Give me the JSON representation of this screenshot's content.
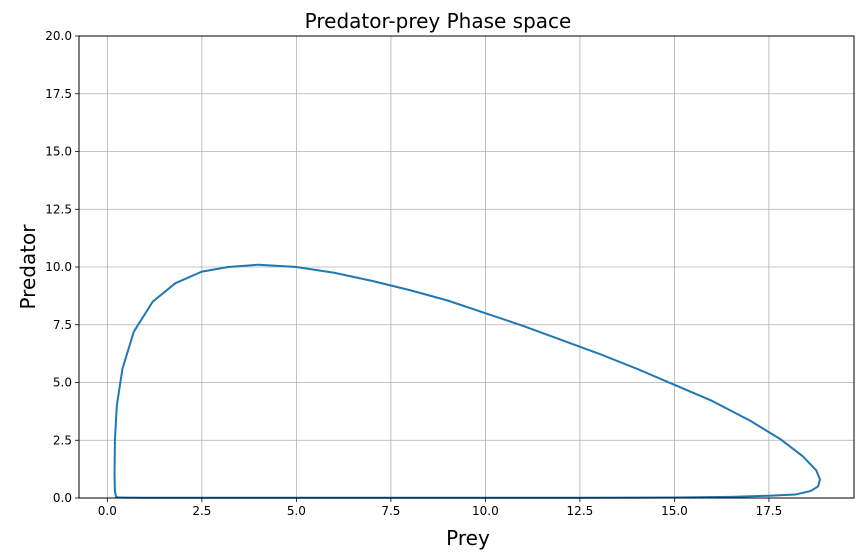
{
  "chart_data": {
    "type": "line",
    "title": "Predator-prey Phase space",
    "xlabel": "Prey",
    "ylabel": "Predator",
    "xlim": [
      -0.75,
      19.75
    ],
    "ylim": [
      0,
      20
    ],
    "xticks": [
      "0.0",
      "2.5",
      "5.0",
      "7.5",
      "10.0",
      "12.5",
      "15.0",
      "17.5"
    ],
    "yticks": [
      "0.0",
      "2.5",
      "5.0",
      "7.5",
      "10.0",
      "12.5",
      "15.0",
      "17.5",
      "20.0"
    ],
    "grid": true,
    "line_color": "#1f77b4",
    "series": [
      {
        "x": [
          0.23,
          0.2,
          0.19,
          0.2,
          0.25,
          0.4,
          0.7,
          1.2,
          1.8,
          2.5,
          3.2,
          4.0,
          5.0,
          6.0,
          7.0,
          8.0,
          9.0,
          10.0,
          11.0,
          12.0,
          13.0,
          14.0,
          15.0,
          16.0,
          17.0,
          17.8,
          18.4,
          18.75,
          18.85,
          18.8,
          18.6,
          18.2,
          17.5,
          16.5,
          15.0,
          12.5,
          10.0,
          7.5,
          5.0,
          2.5,
          1.0,
          0.5,
          0.3,
          0.23
        ],
        "y": [
          0.05,
          0.3,
          1.0,
          2.5,
          4.0,
          5.6,
          7.2,
          8.5,
          9.3,
          9.8,
          10.0,
          10.1,
          10.0,
          9.75,
          9.4,
          9.0,
          8.55,
          8.0,
          7.45,
          6.85,
          6.25,
          5.6,
          4.9,
          4.2,
          3.35,
          2.55,
          1.8,
          1.2,
          0.8,
          0.5,
          0.3,
          0.15,
          0.1,
          0.05,
          0.02,
          0.01,
          0.01,
          0.01,
          0.01,
          0.01,
          0.01,
          0.015,
          0.02,
          0.05
        ]
      }
    ]
  }
}
